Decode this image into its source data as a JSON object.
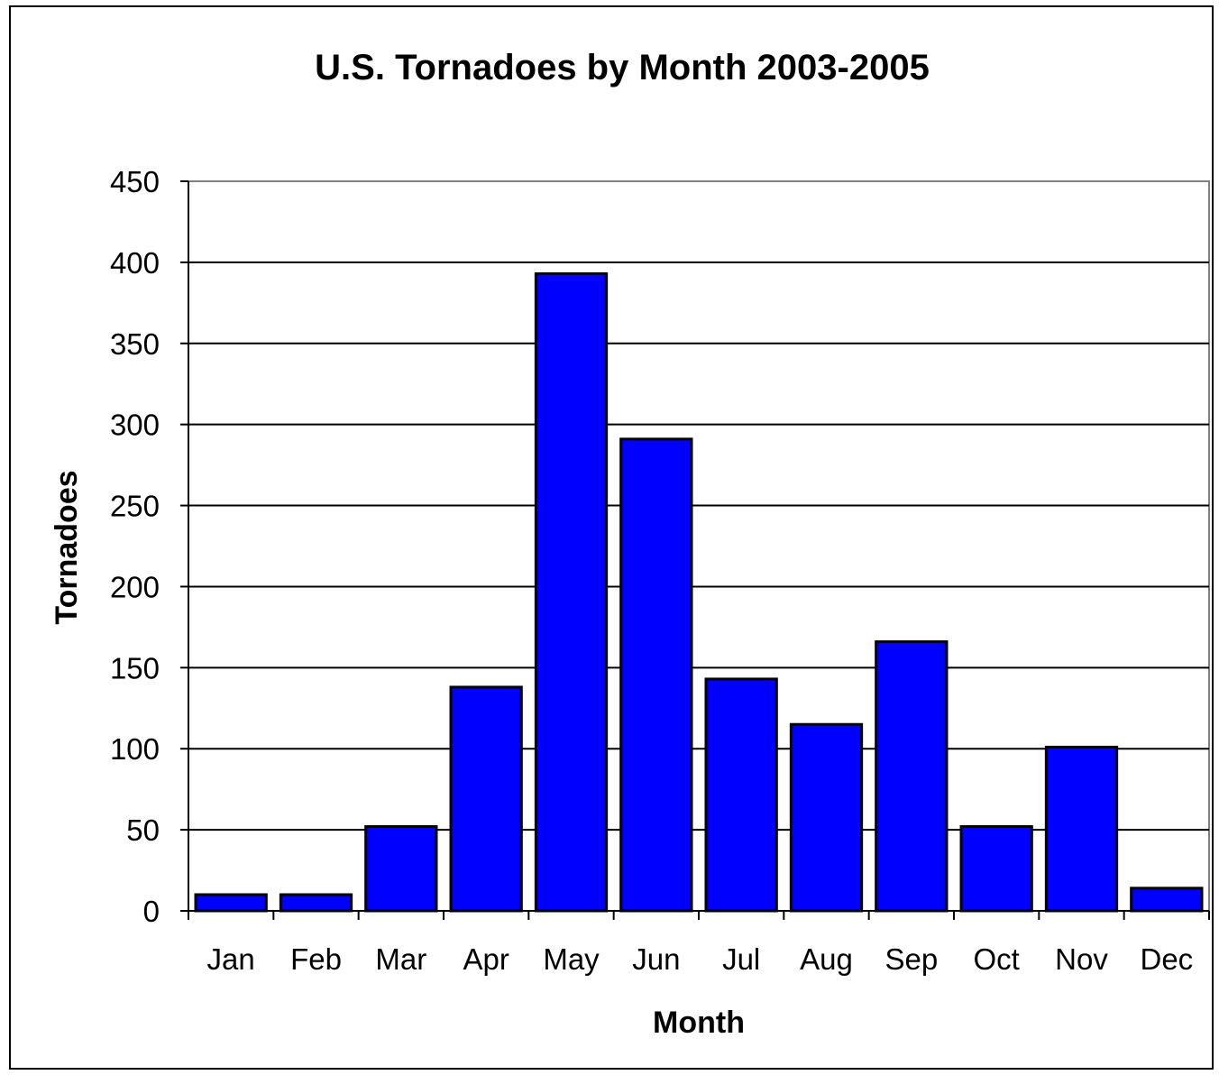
{
  "chart_data": {
    "type": "bar",
    "title": "U.S. Tornadoes by Month 2003-2005",
    "xlabel": "Month",
    "ylabel": "Tornadoes",
    "categories": [
      "Jan",
      "Feb",
      "Mar",
      "Apr",
      "May",
      "Jun",
      "Jul",
      "Aug",
      "Sep",
      "Oct",
      "Nov",
      "Dec"
    ],
    "values": [
      10,
      10,
      52,
      138,
      393,
      291,
      143,
      115,
      166,
      52,
      101,
      14
    ],
    "ylim": [
      0,
      450
    ],
    "yticks": [
      "0",
      "50",
      "100",
      "150",
      "200",
      "250",
      "300",
      "350",
      "400",
      "450"
    ],
    "grid": true,
    "legend": "none",
    "bar_color": "#0000FF",
    "bar_edge_color": "#000000"
  }
}
